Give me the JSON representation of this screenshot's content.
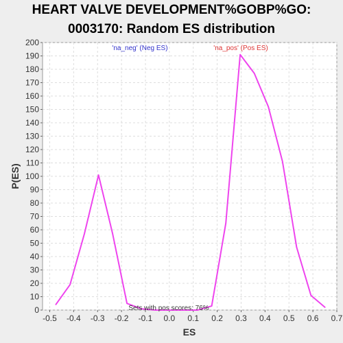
{
  "title_line1": "HEART VALVE DEVELOPMENT%GOBP%GO:",
  "title_line2": "0003170: Random ES distribution",
  "chart_data": {
    "type": "line",
    "xlabel": "ES",
    "ylabel": "P(ES)",
    "xlim": [
      -0.53,
      0.7
    ],
    "ylim": [
      0,
      200
    ],
    "xticks": [
      "-0.5",
      "-0.4",
      "-0.3",
      "-0.2",
      "-0.1",
      "0.0",
      "0.1",
      "0.2",
      "0.3",
      "0.4",
      "0.5",
      "0.6",
      "0.7"
    ],
    "xtick_values": [
      -0.5,
      -0.4,
      -0.3,
      -0.2,
      -0.1,
      0.0,
      0.1,
      0.2,
      0.3,
      0.4,
      0.5,
      0.6,
      0.7
    ],
    "yticks": [
      0,
      10,
      20,
      30,
      40,
      50,
      60,
      70,
      80,
      90,
      100,
      110,
      120,
      130,
      140,
      150,
      160,
      170,
      180,
      190,
      200
    ],
    "grid": true,
    "series": [
      {
        "color": "#ee44ee",
        "x": [
          -0.475,
          -0.415,
          -0.355,
          -0.296,
          -0.237,
          -0.177,
          -0.118,
          -0.059,
          0.0,
          0.059,
          0.118,
          0.177,
          0.236,
          0.296,
          0.355,
          0.414,
          0.473,
          0.532,
          0.592,
          0.651
        ],
        "y": [
          4,
          19,
          57,
          101,
          57,
          5,
          1,
          0,
          0,
          0,
          0,
          3,
          65,
          191,
          177,
          152,
          111,
          47,
          11,
          2
        ]
      }
    ],
    "annotations": [
      {
        "text": "'na_neg' (Neg ES)",
        "color": "#3333cc"
      },
      {
        "text": "'na_pos' (Pos ES)",
        "color": "#dd3333"
      },
      {
        "text": "Sets with pos scores: 76%",
        "color": "#333333"
      }
    ]
  }
}
